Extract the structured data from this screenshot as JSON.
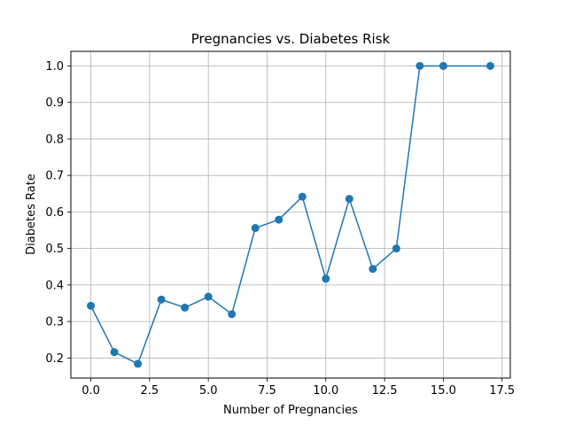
{
  "chart_data": {
    "type": "line",
    "title": "Pregnancies vs. Diabetes Risk",
    "xlabel": "Number of Pregnancies",
    "ylabel": "Diabetes Rate",
    "xlim": [
      -0.85,
      17.85
    ],
    "ylim": [
      0.145,
      1.04
    ],
    "xticks": [
      0.0,
      2.5,
      5.0,
      7.5,
      10.0,
      12.5,
      15.0,
      17.5
    ],
    "xtick_labels": [
      "0.0",
      "2.5",
      "5.0",
      "7.5",
      "10.0",
      "12.5",
      "15.0",
      "17.5"
    ],
    "yticks": [
      0.2,
      0.3,
      0.4,
      0.5,
      0.6,
      0.7,
      0.8,
      0.9,
      1.0
    ],
    "ytick_labels": [
      "0.2",
      "0.3",
      "0.4",
      "0.5",
      "0.6",
      "0.7",
      "0.8",
      "0.9",
      "1.0"
    ],
    "grid": true,
    "series": [
      {
        "color": "#1f77b4",
        "marker": "circle",
        "x": [
          0,
          1,
          2,
          3,
          4,
          5,
          6,
          7,
          8,
          9,
          10,
          11,
          12,
          13,
          14,
          15,
          17
        ],
        "y": [
          0.343,
          0.216,
          0.184,
          0.36,
          0.338,
          0.368,
          0.32,
          0.556,
          0.579,
          0.642,
          0.417,
          0.636,
          0.444,
          0.5,
          1.0,
          1.0,
          1.0
        ]
      }
    ]
  }
}
